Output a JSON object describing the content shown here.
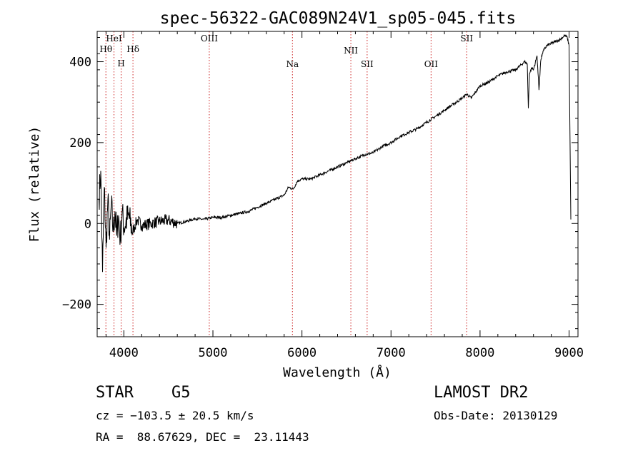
{
  "chart_data": {
    "type": "line",
    "title": "spec-56322-GAC089N24V1_sp05-045.fits",
    "xlabel": "Wavelength (Å)",
    "ylabel": "Flux (relative)",
    "xlim": [
      3700,
      9100
    ],
    "ylim": [
      -280,
      475
    ],
    "xticks": [
      4000,
      5000,
      6000,
      7000,
      8000,
      9000
    ],
    "yticks": [
      -200,
      0,
      200,
      400
    ],
    "ytick_labels": [
      "−200",
      "0",
      "200",
      "400"
    ],
    "grid": false,
    "lines": [
      {
        "label": "Hθ",
        "wavelength": 3798
      },
      {
        "label": "HeI",
        "wavelength": 3889
      },
      {
        "label": "H",
        "wavelength": 3970
      },
      {
        "label": "Hδ",
        "wavelength": 4102
      },
      {
        "label": "OIII",
        "wavelength": 4959
      },
      {
        "label": "Na",
        "wavelength": 5893
      },
      {
        "label": "NII",
        "wavelength": 6549
      },
      {
        "label": "SII",
        "wavelength": 6732
      },
      {
        "label": "OII",
        "wavelength": 7450
      },
      {
        "label": "SII",
        "wavelength": 7850
      }
    ],
    "series": [
      {
        "x": [
          3720,
          3740,
          3760,
          3780,
          3800,
          3820,
          3840,
          3860,
          3880,
          3900,
          3920,
          3940,
          3960,
          3980,
          4000,
          4050,
          4100,
          4150,
          4200,
          4300,
          4400,
          4500,
          4600,
          4700,
          4800,
          4900,
          5000,
          5100,
          5200,
          5300,
          5400,
          5500,
          5600,
          5700,
          5800,
          5850,
          5900,
          5950,
          6000,
          6100,
          6200,
          6300,
          6400,
          6500,
          6600,
          6700,
          6800,
          6900,
          7000,
          7100,
          7200,
          7300,
          7400,
          7500,
          7600,
          7700,
          7800,
          7850,
          7900,
          8000,
          8100,
          8200,
          8300,
          8400,
          8450,
          8500,
          8530,
          8542,
          8555,
          8580,
          8600,
          8640,
          8662,
          8680,
          8700,
          8720,
          8750,
          8800,
          8850,
          8900,
          8950,
          8980,
          9000,
          9020
        ],
        "y": [
          60,
          130,
          -120,
          90,
          -60,
          60,
          -40,
          50,
          -20,
          30,
          -30,
          20,
          -40,
          30,
          -10,
          20,
          -20,
          10,
          -5,
          0,
          5,
          8,
          0,
          5,
          12,
          10,
          15,
          15,
          20,
          25,
          30,
          40,
          50,
          60,
          70,
          90,
          85,
          105,
          110,
          110,
          120,
          130,
          140,
          150,
          160,
          170,
          175,
          190,
          200,
          215,
          225,
          235,
          250,
          265,
          280,
          295,
          310,
          320,
          310,
          340,
          350,
          365,
          375,
          380,
          390,
          400,
          395,
          285,
          370,
          385,
          380,
          415,
          330,
          400,
          420,
          430,
          440,
          445,
          450,
          455,
          465,
          460,
          440,
          10
        ]
      }
    ],
    "annotations": {
      "object": "STAR    G5",
      "cz": "cz = −103.5 ± 20.5 km/s",
      "coords": "RA =  88.67629, DEC =  23.11443",
      "survey": "LAMOST DR2",
      "obs_date": "Obs-Date: 20130129"
    }
  }
}
